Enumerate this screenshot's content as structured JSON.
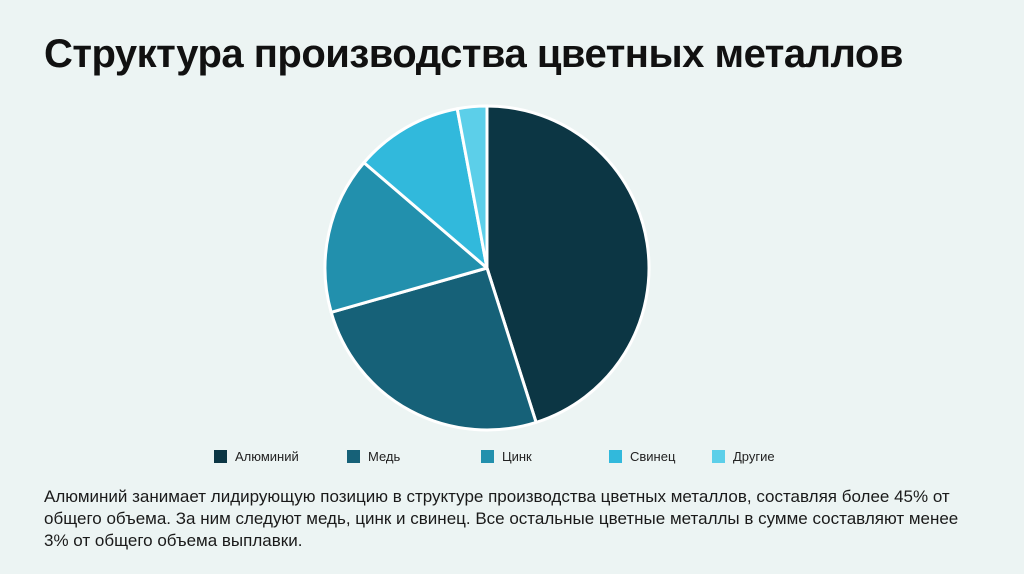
{
  "slide": {
    "title": "Структура производства цветных металлов",
    "description": "Алюминий занимает лидирующую позицию в структуре производства цветных металлов, составляя более 45% от общего объема. За ним следуют медь, цинк и свинец. Все остальные цветные металлы в сумме составляют менее 3% от общего объема выплавки."
  },
  "chart_data": {
    "type": "pie",
    "title": "",
    "legend_position": "bottom",
    "slices": [
      {
        "label": "Алюминий",
        "value": 46,
        "color": "#0c3644"
      },
      {
        "label": "Медь",
        "value": 26,
        "color": "#166178"
      },
      {
        "label": "Цинк",
        "value": 16,
        "color": "#2290ad"
      },
      {
        "label": "Свинец",
        "value": 11,
        "color": "#31b9dc"
      },
      {
        "label": "Другие",
        "value": 3,
        "color": "#5ccfe9"
      }
    ]
  }
}
